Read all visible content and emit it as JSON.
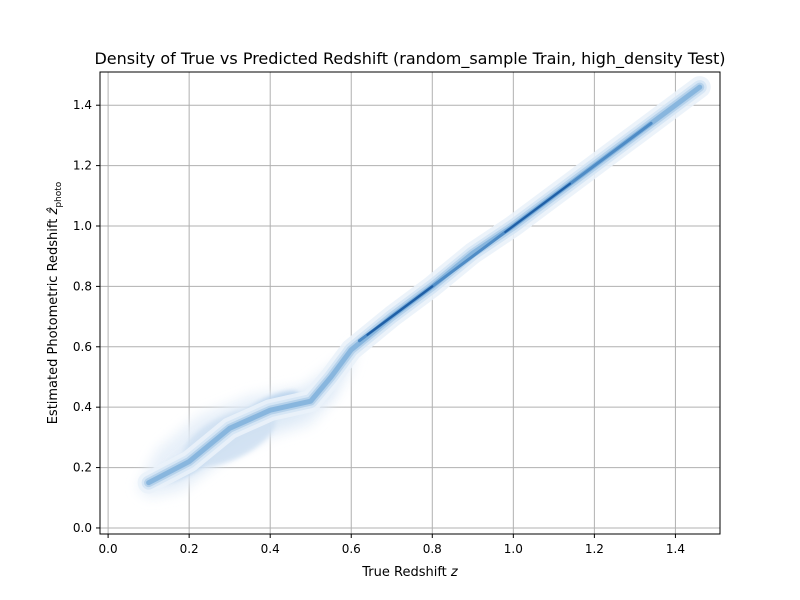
{
  "chart_data": {
    "type": "kde-density",
    "title": "Density of True vs Predicted Redshift (random_sample Train, high_density Test)",
    "xlabel": "True Redshift",
    "xlabel_symbol": "z",
    "ylabel": "Estimated Photometric Redshift",
    "ylabel_symbol": "ẑ",
    "ylabel_subscript": "photo",
    "xlim": [
      -0.02,
      1.51
    ],
    "ylim": [
      -0.02,
      1.51
    ],
    "xticks": [
      0.0,
      0.2,
      0.4,
      0.6,
      0.8,
      1.0,
      1.2,
      1.4
    ],
    "yticks": [
      0.0,
      0.2,
      0.4,
      0.6,
      0.8,
      1.0,
      1.2,
      1.4
    ],
    "xtick_labels": [
      "0.0",
      "0.2",
      "0.4",
      "0.6",
      "0.8",
      "1.0",
      "1.2",
      "1.4"
    ],
    "ytick_labels": [
      "0.0",
      "0.2",
      "0.4",
      "0.6",
      "0.8",
      "1.0",
      "1.2",
      "1.4"
    ],
    "grid": true,
    "colors": {
      "density_low": "#eef4fb",
      "density_high": "#1f5fa6",
      "grid": "#b0b0b0"
    },
    "density_ridge": {
      "x": [
        0.1,
        0.2,
        0.3,
        0.4,
        0.5,
        0.55,
        0.6,
        0.7,
        0.8,
        0.9,
        1.0,
        1.1,
        1.2,
        1.3,
        1.4,
        1.46
      ],
      "y": [
        0.15,
        0.22,
        0.33,
        0.39,
        0.42,
        0.5,
        0.59,
        0.7,
        0.8,
        0.91,
        1.0,
        1.1,
        1.2,
        1.3,
        1.4,
        1.46
      ]
    },
    "high_density_core": {
      "x_range": [
        0.62,
        1.34
      ],
      "relation": "y = x"
    },
    "density_blobs": [
      {
        "center": [
          0.18,
          0.2
        ],
        "level": "medium"
      },
      {
        "center": [
          0.4,
          0.4
        ],
        "level": "medium"
      },
      {
        "center": [
          0.3,
          0.3
        ],
        "level": "low"
      }
    ]
  }
}
